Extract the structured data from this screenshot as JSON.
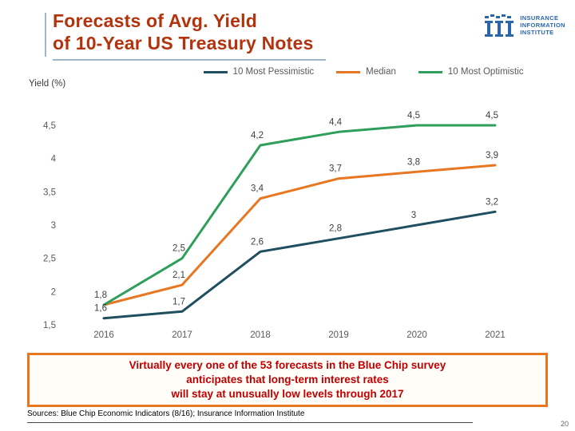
{
  "slide": {
    "title": {
      "line1": "Forecasts of Avg. Yield",
      "line2": "of 10-Year US Treasury Notes"
    },
    "logo": {
      "line1": "INSURANCE",
      "line2": "INFORMATION",
      "line3": "INSTITUTE",
      "color": "#2a66ae"
    },
    "callout": {
      "line1": "Virtually every one of the 53 forecasts in the Blue Chip survey",
      "line2": "anticipates that long-term interest rates",
      "line3": "will stay at unusually low levels through 2017"
    },
    "sources": "Sources: Blue Chip Economic Indicators (8/16); Insurance Information Institute",
    "page_number": "20"
  },
  "chart_data": {
    "type": "line",
    "title": "",
    "xlabel": "",
    "ylabel": "Yield (%)",
    "categories": [
      "2016",
      "2017",
      "2018",
      "2019",
      "2020",
      "2021"
    ],
    "ylim": [
      1.5,
      4.5
    ],
    "ytick_values": [
      4.5,
      4,
      3.5,
      3,
      2.5,
      2,
      1.5
    ],
    "yticks": [
      "4,5",
      "4",
      "3,5",
      "3",
      "2,5",
      "2",
      "1,5"
    ],
    "grid": false,
    "legend_position": "top",
    "series": [
      {
        "name": "10 Most Pessimistic",
        "color": "#1f4e5f",
        "values": [
          1.6,
          1.7,
          2.6,
          2.8,
          3.0,
          3.2
        ],
        "labels": [
          "1,6",
          "1,7",
          "2,6",
          "2,8",
          "3",
          "3,2"
        ]
      },
      {
        "name": "Median",
        "color": "#e87722",
        "values": [
          1.8,
          2.1,
          3.4,
          3.7,
          3.8,
          3.9
        ],
        "labels": [
          "1,8",
          "2,1",
          "3,4",
          "3,7",
          "3,8",
          "3,9"
        ]
      },
      {
        "name": "10 Most Optimistic",
        "color": "#2e9e5b",
        "values": [
          1.8,
          2.5,
          4.2,
          4.4,
          4.5,
          4.5
        ],
        "labels": [
          "",
          "2,5",
          "4,2",
          "4,4",
          "4,5",
          "4,5"
        ]
      }
    ]
  }
}
